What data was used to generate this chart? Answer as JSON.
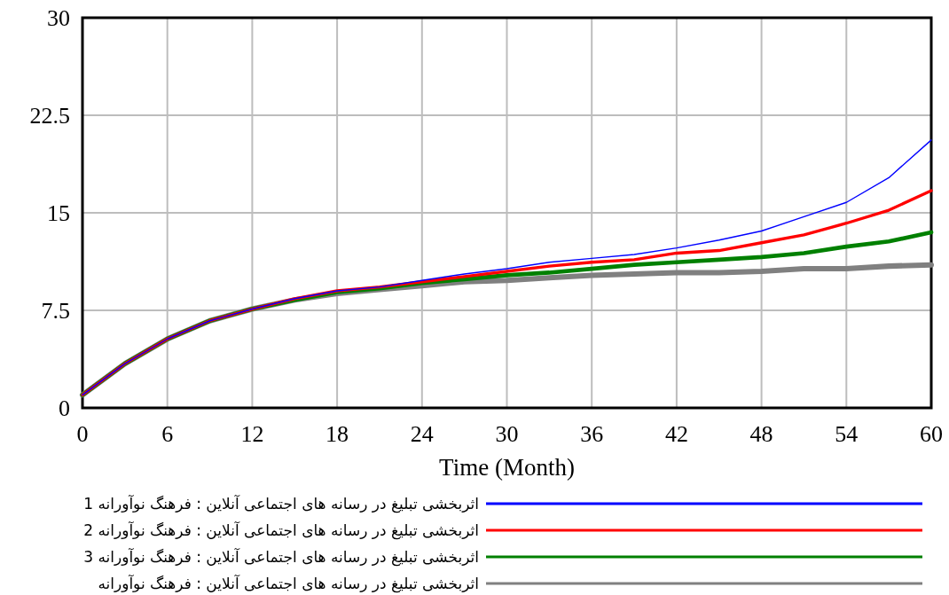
{
  "chart_data": {
    "type": "line",
    "xlabel": "Time (Month)",
    "x": [
      0,
      3,
      6,
      9,
      12,
      15,
      18,
      21,
      24,
      27,
      30,
      33,
      36,
      39,
      42,
      45,
      48,
      51,
      54,
      57,
      60
    ],
    "series": [
      {
        "name": "اثربخشی تبلیغ در رسانه های اجتماعی آنلاین : فرهنگ نوآورانه 1",
        "color": "#0000ff",
        "values": [
          1.0,
          3.4,
          5.3,
          6.7,
          7.6,
          8.4,
          9.0,
          9.3,
          9.8,
          10.3,
          10.7,
          11.2,
          11.5,
          11.8,
          12.3,
          12.9,
          13.6,
          14.7,
          15.8,
          17.7,
          20.6
        ]
      },
      {
        "name": "اثربخشی تبلیغ در رسانه های اجتماعی آنلاین : فرهنگ نوآورانه 2",
        "color": "#ff0000",
        "values": [
          1.0,
          3.4,
          5.3,
          6.7,
          7.6,
          8.4,
          9.0,
          9.3,
          9.7,
          10.1,
          10.5,
          10.9,
          11.2,
          11.4,
          11.9,
          12.1,
          12.7,
          13.3,
          14.2,
          15.2,
          16.7
        ]
      },
      {
        "name": "اثربخشی تبلیغ در رسانه های اجتماعی آنلاین : فرهنگ نوآورانه 3",
        "color": "#008000",
        "values": [
          1.0,
          3.4,
          5.3,
          6.7,
          7.6,
          8.3,
          8.9,
          9.2,
          9.6,
          9.9,
          10.2,
          10.4,
          10.7,
          11.0,
          11.2,
          11.4,
          11.6,
          11.9,
          12.4,
          12.8,
          13.5
        ]
      },
      {
        "name": "اثربخشی تبلیغ در رسانه های اجتماعی آنلاین : فرهنگ نوآورانه",
        "color": "#808080",
        "values": [
          1.0,
          3.4,
          5.3,
          6.7,
          7.6,
          8.3,
          8.8,
          9.1,
          9.4,
          9.7,
          9.8,
          10.0,
          10.2,
          10.3,
          10.4,
          10.4,
          10.5,
          10.7,
          10.7,
          10.9,
          11.0
        ]
      }
    ],
    "xlim": [
      0,
      60
    ],
    "ylim": [
      0,
      30
    ],
    "xticks": [
      0,
      6,
      12,
      18,
      24,
      30,
      36,
      42,
      48,
      54,
      60
    ],
    "yticks": [
      0,
      7.5,
      15,
      22.5,
      30
    ],
    "grid": true,
    "legend": "bottom"
  }
}
